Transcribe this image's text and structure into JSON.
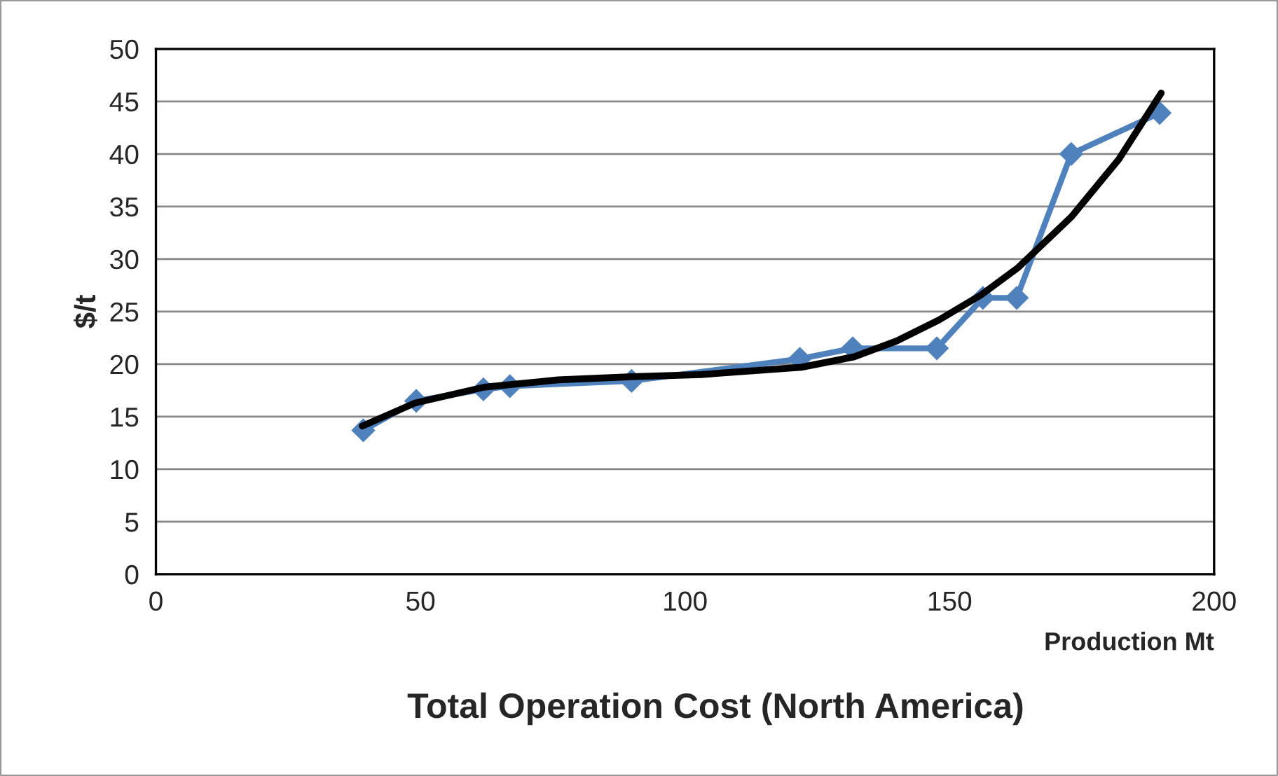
{
  "chart_data": {
    "type": "line",
    "title": "Total Operation Cost (North America)",
    "xlabel": "Production Mt",
    "ylabel": "$/t",
    "xlim": [
      0,
      200
    ],
    "xticks": [
      0,
      50,
      100,
      150,
      200
    ],
    "ylim": [
      0,
      50
    ],
    "yticks": [
      0,
      5,
      10,
      15,
      20,
      25,
      30,
      35,
      40,
      45,
      50
    ],
    "grid": "y",
    "legend": false,
    "series": [
      {
        "color": "#4f81bd",
        "marker": "diamond",
        "x": [
          39.2,
          49.2,
          61.9,
          66.9,
          89.9,
          121.7,
          131.7,
          147.6,
          156.3,
          162.7,
          173,
          189.7
        ],
        "values": [
          13.7,
          16.5,
          17.6,
          17.9,
          18.4,
          20.5,
          21.5,
          21.5,
          26.3,
          26.3,
          40,
          43.9
        ]
      },
      {
        "color": "#000000",
        "marker": "none",
        "x": [
          39,
          49,
          62,
          76,
          90,
          103,
          122,
          132,
          140,
          148,
          156,
          163,
          173,
          182,
          190
        ],
        "values": [
          14.1,
          16.3,
          17.8,
          18.5,
          18.8,
          19.0,
          19.7,
          20.7,
          22.2,
          24.2,
          26.6,
          29.2,
          34.0,
          39.5,
          45.8
        ]
      }
    ]
  }
}
